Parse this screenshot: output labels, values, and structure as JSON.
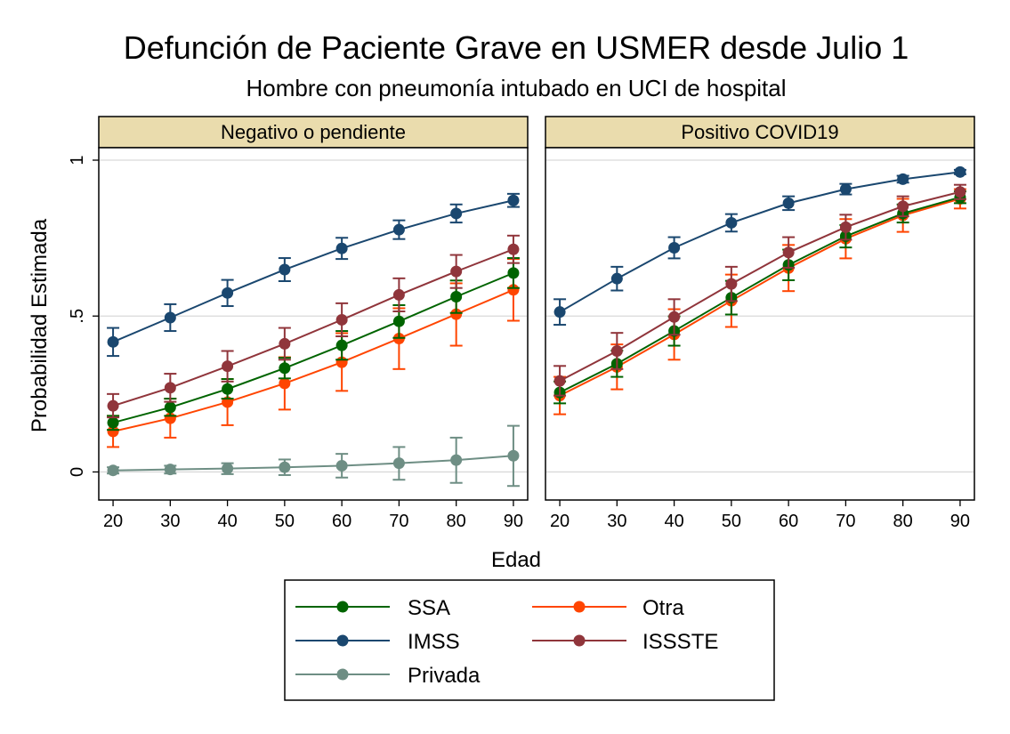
{
  "chart_data": {
    "type": "line",
    "title": "Defunción de Paciente Grave en USMER desde Julio 1",
    "subtitle": "Hombre con pneumonía intubado en UCI de hospital",
    "xlabel": "Edad",
    "ylabel": "Probabilidad Estimada",
    "x_ticks": [
      "20",
      "30",
      "40",
      "50",
      "60",
      "70",
      "80",
      "90"
    ],
    "y_ticks": [
      {
        "value": 0,
        "label": "0"
      },
      {
        "value": 0.5,
        "label": ".5"
      },
      {
        "value": 1,
        "label": "1"
      }
    ],
    "ylim": [
      -0.09,
      1.04
    ],
    "xlim": [
      17.5,
      92.5
    ],
    "grid": true,
    "legend_position": "bottom",
    "x": [
      20,
      30,
      40,
      50,
      60,
      70,
      80,
      90
    ],
    "series_colors": {
      "SSA": "#006400",
      "Otra": "#ff4500",
      "IMSS": "#1a476f",
      "ISSSTE": "#90353b",
      "Privada": "#6e8e84"
    },
    "legend": [
      {
        "name": "SSA",
        "color": "#006400"
      },
      {
        "name": "Otra",
        "color": "#ff4500"
      },
      {
        "name": "IMSS",
        "color": "#1a476f"
      },
      {
        "name": "ISSSTE",
        "color": "#90353b"
      },
      {
        "name": "Privada",
        "color": "#6e8e84"
      }
    ],
    "panels": [
      {
        "label": "Negativo o pendiente",
        "series": [
          {
            "name": "Privada",
            "values": [
              0.005,
              0.008,
              0.011,
              0.015,
              0.02,
              0.028,
              0.038,
              0.052
            ],
            "lower": [
              -0.005,
              -0.005,
              -0.007,
              -0.01,
              -0.018,
              -0.025,
              -0.035,
              -0.045
            ],
            "upper": [
              0.015,
              0.02,
              0.028,
              0.04,
              0.058,
              0.08,
              0.11,
              0.148
            ]
          },
          {
            "name": "Otra",
            "values": [
              0.13,
              0.172,
              0.224,
              0.284,
              0.352,
              0.428,
              0.506,
              0.584
            ],
            "lower": [
              0.08,
              0.11,
              0.15,
              0.2,
              0.26,
              0.33,
              0.405,
              0.485
            ],
            "upper": [
              0.18,
              0.235,
              0.298,
              0.368,
              0.445,
              0.525,
              0.605,
              0.683
            ]
          },
          {
            "name": "SSA",
            "values": [
              0.158,
              0.207,
              0.266,
              0.333,
              0.406,
              0.483,
              0.562,
              0.638
            ],
            "lower": [
              0.135,
              0.18,
              0.235,
              0.3,
              0.36,
              0.43,
              0.51,
              0.59
            ],
            "upper": [
              0.18,
              0.235,
              0.298,
              0.366,
              0.452,
              0.535,
              0.614,
              0.686
            ]
          },
          {
            "name": "ISSSTE",
            "values": [
              0.212,
              0.27,
              0.339,
              0.411,
              0.488,
              0.568,
              0.643,
              0.714
            ],
            "lower": [
              0.175,
              0.225,
              0.29,
              0.36,
              0.435,
              0.515,
              0.59,
              0.67
            ],
            "upper": [
              0.25,
              0.315,
              0.388,
              0.462,
              0.541,
              0.621,
              0.696,
              0.758
            ]
          },
          {
            "name": "IMSS",
            "values": [
              0.417,
              0.495,
              0.574,
              0.649,
              0.717,
              0.777,
              0.829,
              0.871
            ],
            "lower": [
              0.372,
              0.452,
              0.532,
              0.612,
              0.683,
              0.747,
              0.8,
              0.85
            ],
            "upper": [
              0.462,
              0.538,
              0.616,
              0.686,
              0.751,
              0.807,
              0.858,
              0.892
            ]
          }
        ]
      },
      {
        "label": "Positivo COVID19",
        "series": [
          {
            "name": "Otra",
            "values": [
              0.245,
              0.337,
              0.441,
              0.549,
              0.654,
              0.748,
              0.823,
              0.876
            ],
            "lower": [
              0.185,
              0.265,
              0.36,
              0.465,
              0.58,
              0.685,
              0.77,
              0.845
            ],
            "upper": [
              0.305,
              0.409,
              0.522,
              0.633,
              0.728,
              0.811,
              0.876,
              0.907
            ]
          },
          {
            "name": "SSA",
            "values": [
              0.255,
              0.347,
              0.452,
              0.559,
              0.664,
              0.756,
              0.829,
              0.881
            ],
            "lower": [
              0.22,
              0.305,
              0.405,
              0.505,
              0.615,
              0.72,
              0.8,
              0.862
            ],
            "upper": [
              0.29,
              0.389,
              0.499,
              0.613,
              0.713,
              0.792,
              0.858,
              0.9
            ]
          },
          {
            "name": "ISSSTE",
            "values": [
              0.292,
              0.388,
              0.497,
              0.603,
              0.704,
              0.785,
              0.852,
              0.898
            ],
            "lower": [
              0.245,
              0.33,
              0.44,
              0.548,
              0.655,
              0.745,
              0.82,
              0.875
            ],
            "upper": [
              0.34,
              0.446,
              0.554,
              0.658,
              0.753,
              0.825,
              0.884,
              0.921
            ]
          },
          {
            "name": "IMSS",
            "values": [
              0.513,
              0.62,
              0.719,
              0.799,
              0.862,
              0.907,
              0.939,
              0.962
            ],
            "lower": [
              0.472,
              0.582,
              0.685,
              0.771,
              0.84,
              0.89,
              0.928,
              0.955
            ],
            "upper": [
              0.554,
              0.658,
              0.753,
              0.827,
              0.884,
              0.924,
              0.95,
              0.969
            ]
          }
        ]
      }
    ]
  }
}
